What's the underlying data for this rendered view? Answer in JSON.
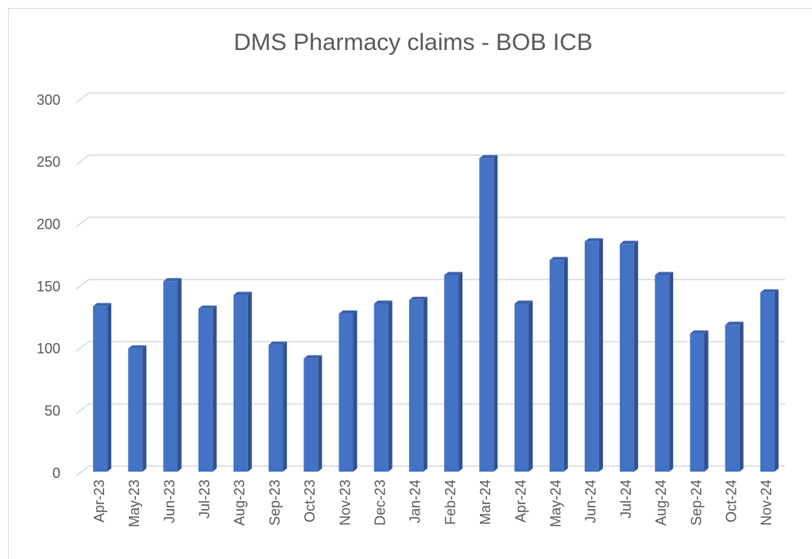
{
  "chart_data": {
    "type": "bar3d",
    "title": "DMS Pharmacy claims - BOB ICB",
    "categories": [
      "Apr-23",
      "May-23",
      "Jun-23",
      "Jul-23",
      "Aug-23",
      "Sep-23",
      "Oct-23",
      "Nov-23",
      "Dec-23",
      "Jan-24",
      "Feb-24",
      "Mar-24",
      "Apr-24",
      "May-24",
      "Jun-24",
      "Jul-24",
      "Aug-24",
      "Sep-24",
      "Oct-24",
      "Nov-24"
    ],
    "values": [
      133,
      99,
      153,
      131,
      142,
      102,
      91,
      127,
      135,
      138,
      158,
      252,
      135,
      170,
      185,
      183,
      158,
      111,
      118,
      144
    ],
    "color": "#4472c4",
    "ylim": [
      0,
      300
    ],
    "yticks": [
      0,
      50,
      100,
      150,
      200,
      250,
      300
    ],
    "grid": true
  }
}
